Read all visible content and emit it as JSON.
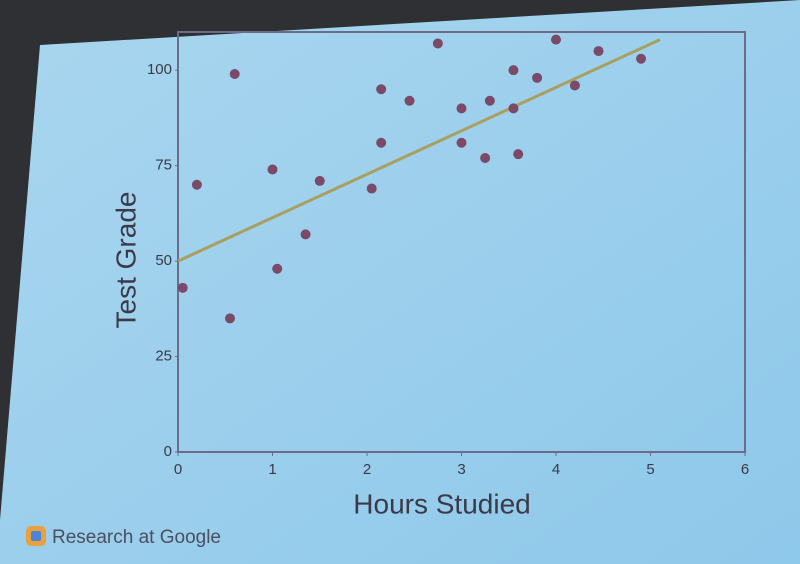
{
  "chart_data": {
    "type": "scatter",
    "x_label": "Hours Studied",
    "y_label": "Test Grade",
    "series": [
      {
        "color": "#7a4a68",
        "x": [
          0.05,
          0.2,
          0.55,
          0.6,
          1.0,
          1.05,
          1.35,
          1.5,
          2.05,
          2.15,
          2.15,
          2.45,
          2.75,
          3.0,
          3.0,
          3.25,
          3.3,
          3.55,
          3.55,
          3.6,
          3.8,
          4.0,
          4.2,
          4.45,
          4.9
        ],
        "values": [
          43,
          70,
          35,
          99,
          74,
          48,
          57,
          71,
          69,
          81,
          95,
          92,
          107,
          90,
          81,
          77,
          92,
          100,
          90,
          78,
          98,
          108,
          96,
          105,
          103
        ]
      }
    ],
    "trend_line": {
      "color": "#a8a060",
      "x": [
        0,
        5.1
      ],
      "values": [
        50,
        108
      ]
    },
    "xlim": [
      0,
      6
    ],
    "xticks": [
      0,
      1,
      2,
      3,
      4,
      5,
      6
    ],
    "ylim": [
      0,
      110
    ],
    "yticks": [
      0,
      25,
      50,
      75,
      100
    ],
    "grid": false
  },
  "footer": {
    "text": "Research at Google"
  }
}
